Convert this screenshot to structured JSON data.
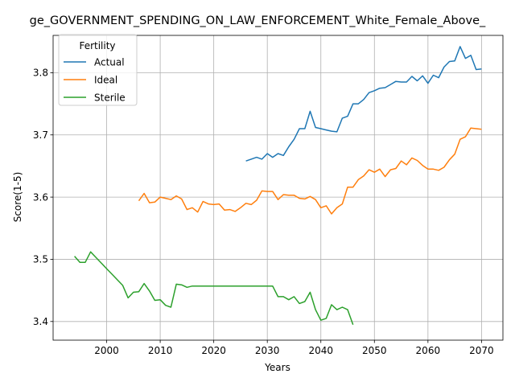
{
  "chart_data": {
    "type": "line",
    "title": "ge_GOVERNMENT_SPENDING_ON_LAW_ENFORCEMENT_White_Female_Above_",
    "xlabel": "Years",
    "ylabel": "Score(1-5)",
    "xlim": [
      1990,
      2074
    ],
    "ylim": [
      3.37,
      3.86
    ],
    "xticks": [
      2000,
      2010,
      2020,
      2030,
      2040,
      2050,
      2060,
      2070
    ],
    "yticks": [
      3.4,
      3.5,
      3.6,
      3.7,
      3.8
    ],
    "grid": true,
    "legend": {
      "title": "Fertility",
      "placement": "upper-left"
    },
    "series": [
      {
        "name": "Actual",
        "color": "#1f77b4",
        "x": [
          2026,
          2027,
          2028,
          2029,
          2030,
          2031,
          2032,
          2033,
          2034,
          2035,
          2036,
          2037,
          2038,
          2039,
          2040,
          2041,
          2042,
          2043,
          2044,
          2045,
          2046,
          2047,
          2048,
          2049,
          2050,
          2051,
          2052,
          2053,
          2054,
          2055,
          2056,
          2057,
          2058,
          2059,
          2060,
          2061,
          2062,
          2063,
          2064,
          2065,
          2066,
          2067,
          2068,
          2069,
          2070
        ],
        "y": [
          3.658,
          3.661,
          3.664,
          3.661,
          3.67,
          3.664,
          3.67,
          3.667,
          3.681,
          3.693,
          3.71,
          3.71,
          3.738,
          3.712,
          3.71,
          3.708,
          3.706,
          3.705,
          3.727,
          3.73,
          3.75,
          3.75,
          3.757,
          3.768,
          3.771,
          3.775,
          3.776,
          3.781,
          3.786,
          3.785,
          3.785,
          3.794,
          3.787,
          3.795,
          3.783,
          3.796,
          3.792,
          3.809,
          3.818,
          3.819,
          3.842,
          3.823,
          3.828,
          3.805,
          3.806
        ]
      },
      {
        "name": "Ideal",
        "color": "#ff7f0e",
        "x": [
          2006,
          2007,
          2008,
          2009,
          2010,
          2011,
          2012,
          2013,
          2014,
          2015,
          2016,
          2017,
          2018,
          2019,
          2020,
          2021,
          2022,
          2023,
          2024,
          2025,
          2026,
          2027,
          2028,
          2029,
          2030,
          2031,
          2032,
          2033,
          2034,
          2035,
          2036,
          2037,
          2038,
          2039,
          2040,
          2041,
          2042,
          2043,
          2044,
          2045,
          2046,
          2047,
          2048,
          2049,
          2050,
          2051,
          2052,
          2053,
          2054,
          2055,
          2056,
          2057,
          2058,
          2059,
          2060,
          2061,
          2062,
          2063,
          2064,
          2065,
          2066,
          2067,
          2068,
          2069,
          2070
        ],
        "y": [
          3.594,
          3.606,
          3.591,
          3.592,
          3.6,
          3.598,
          3.596,
          3.602,
          3.597,
          3.58,
          3.583,
          3.576,
          3.593,
          3.589,
          3.588,
          3.589,
          3.579,
          3.58,
          3.577,
          3.583,
          3.59,
          3.588,
          3.595,
          3.61,
          3.609,
          3.609,
          3.596,
          3.604,
          3.603,
          3.603,
          3.598,
          3.597,
          3.601,
          3.596,
          3.583,
          3.586,
          3.573,
          3.583,
          3.589,
          3.616,
          3.616,
          3.628,
          3.634,
          3.644,
          3.64,
          3.645,
          3.633,
          3.644,
          3.646,
          3.658,
          3.652,
          3.663,
          3.659,
          3.651,
          3.645,
          3.645,
          3.643,
          3.648,
          3.66,
          3.669,
          3.693,
          3.697,
          3.711,
          3.71,
          3.709
        ]
      },
      {
        "name": "Sterile",
        "color": "#2ca02c",
        "x": [
          1994,
          1995,
          1996,
          1997,
          1998,
          1999,
          2000,
          2001,
          2002,
          2003,
          2004,
          2005,
          2006,
          2007,
          2008,
          2009,
          2010,
          2011,
          2012,
          2013,
          2014,
          2015,
          2016,
          2017,
          2018,
          2019,
          2020,
          2021,
          2022,
          2023,
          2024,
          2025,
          2026,
          2027,
          2028,
          2029,
          2030,
          2031,
          2032,
          2033,
          2034,
          2035,
          2036,
          2037,
          2038,
          2039,
          2040,
          2041,
          2042,
          2043,
          2044,
          2045,
          2046
        ],
        "y": [
          3.505,
          3.495,
          3.495,
          3.512,
          3.503,
          3.494,
          3.485,
          3.476,
          3.467,
          3.458,
          3.438,
          3.447,
          3.448,
          3.461,
          3.449,
          3.434,
          3.435,
          3.426,
          3.423,
          3.46,
          3.459,
          3.455,
          3.457,
          3.457,
          3.457,
          3.457,
          3.457,
          3.457,
          3.457,
          3.457,
          3.457,
          3.457,
          3.457,
          3.457,
          3.457,
          3.457,
          3.457,
          3.457,
          3.44,
          3.44,
          3.435,
          3.44,
          3.429,
          3.432,
          3.447,
          3.419,
          3.402,
          3.405,
          3.427,
          3.419,
          3.423,
          3.419,
          3.395
        ]
      }
    ]
  }
}
